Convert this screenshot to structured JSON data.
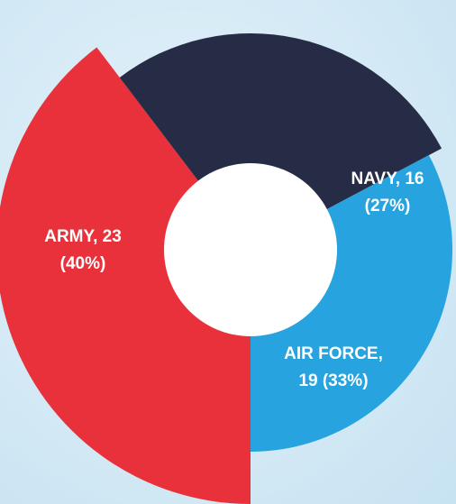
{
  "chart_data": {
    "type": "pie",
    "variant": "donut",
    "title": "",
    "series": [
      {
        "name": "",
        "slices": [
          {
            "category": "ARMY",
            "value": 23,
            "percent": 40,
            "color": "#e8313a",
            "label_lines": [
              "ARMY, 23",
              "(40%)"
            ]
          },
          {
            "category": "NAVY",
            "value": 16,
            "percent": 27,
            "color": "#262c45",
            "label_lines": [
              "NAVY, 16",
              "(27%)"
            ]
          },
          {
            "category": "AIR FORCE",
            "value": 19,
            "percent": 33,
            "color": "#27a3e0",
            "label_lines": [
              "AIR FORCE,",
              "19 (33%)"
            ]
          }
        ]
      }
    ],
    "legend": "none"
  }
}
